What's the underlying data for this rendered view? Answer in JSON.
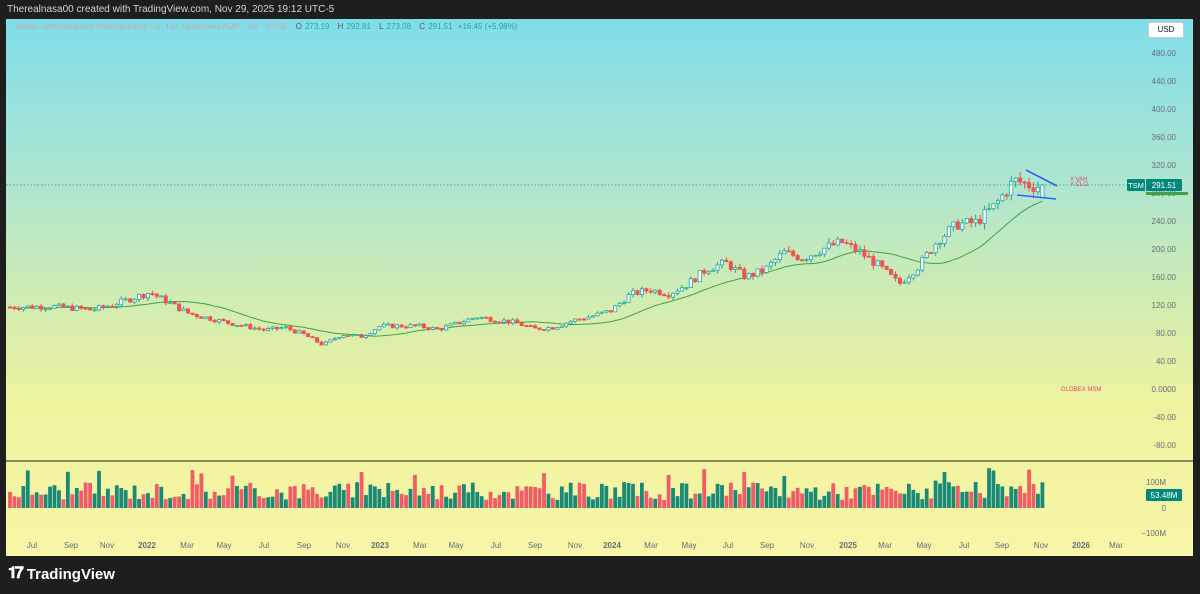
{
  "header": {
    "text": "Therealnasa00 created with TradingView.com, Nov 29, 2025 19:12 UTC-5"
  },
  "legend": {
    "name": "Taiwan Semiconductor Manufacturing Co., Ltd. Sponsored ADR · 1W · NYSE",
    "o_label": "O",
    "o": "273.19",
    "h_label": "H",
    "h": "292.81",
    "l_label": "L",
    "l": "273.08",
    "c_label": "C",
    "c": "291.51",
    "change": "+16.45 (+5.98%)"
  },
  "currency_button": "USD",
  "price_tag": {
    "symbol": "TSM",
    "value": "291.51"
  },
  "volume_tag": {
    "value": "53.48M"
  },
  "annotations": {
    "level_1": "Y VAH",
    "level_2": "Y CLO",
    "globex": "GLOBEX MSM"
  },
  "brand": {
    "name": "TradingView",
    "mark": "𝟏𝟕"
  },
  "colors": {
    "up": "#26a69a",
    "down": "#ef5350",
    "vol_up": "#1a8a77",
    "vol_down": "#f05d66",
    "ma": "#43a047",
    "pattern": "#2962ff",
    "tag": "#00897b"
  },
  "chart_data": [
    {
      "type": "candlestick",
      "title": "",
      "ylim": [
        -100,
        500
      ],
      "y_ticks": [
        "480.00",
        "440.00",
        "400.00",
        "360.00",
        "320.00",
        "280.00",
        "240.00",
        "200.00",
        "160.00",
        "120.00",
        "80.00",
        "40.00",
        "0.0000",
        "-40.00",
        "-80.00"
      ],
      "x_ticks": [
        "Jul",
        "Sep",
        "Nov",
        "2022",
        "Mar",
        "May",
        "Jul",
        "Sep",
        "Nov",
        "2023",
        "Mar",
        "May",
        "Jul",
        "Sep",
        "Nov",
        "2024",
        "Mar",
        "May",
        "Jul",
        "Sep",
        "Nov",
        "2025",
        "Mar",
        "May",
        "Jul",
        "Sep",
        "Nov",
        "2026",
        "Mar"
      ],
      "x_tick_bold": [
        "2022",
        "2023",
        "2024",
        "2025",
        "2026"
      ],
      "price_path": [
        [
          "2021-06",
          117
        ],
        [
          "2021-08",
          118
        ],
        [
          "2021-10",
          113
        ],
        [
          "2021-11",
          120
        ],
        [
          "2022-01",
          138
        ],
        [
          "2022-02",
          123
        ],
        [
          "2022-03",
          108
        ],
        [
          "2022-05",
          95
        ],
        [
          "2022-07",
          84
        ],
        [
          "2022-08",
          88
        ],
        [
          "2022-09",
          78
        ],
        [
          "2022-10",
          63
        ],
        [
          "2022-11",
          78
        ],
        [
          "2022-12",
          75
        ],
        [
          "2023-01",
          90
        ],
        [
          "2023-03",
          90
        ],
        [
          "2023-04",
          85
        ],
        [
          "2023-06",
          103
        ],
        [
          "2023-08",
          95
        ],
        [
          "2023-09",
          86
        ],
        [
          "2023-10",
          88
        ],
        [
          "2023-11",
          98
        ],
        [
          "2023-12",
          104
        ],
        [
          "2024-01",
          112
        ],
        [
          "2024-02",
          135
        ],
        [
          "2024-03",
          142
        ],
        [
          "2024-04",
          136
        ],
        [
          "2024-05",
          150
        ],
        [
          "2024-06",
          172
        ],
        [
          "2024-07",
          180
        ],
        [
          "2024-08",
          160
        ],
        [
          "2024-09",
          170
        ],
        [
          "2024-10",
          195
        ],
        [
          "2024-11",
          187
        ],
        [
          "2024-12",
          200
        ],
        [
          "2025-01",
          210
        ],
        [
          "2025-02",
          195
        ],
        [
          "2025-03",
          175
        ],
        [
          "2025-04",
          150
        ],
        [
          "2025-05",
          175
        ],
        [
          "2025-06",
          212
        ],
        [
          "2025-07",
          235
        ],
        [
          "2025-08",
          238
        ],
        [
          "2025-09",
          262
        ],
        [
          "2025-10",
          298
        ],
        [
          "2025-11",
          290
        ]
      ],
      "last_close": 291.51,
      "moving_average": "20-week",
      "pattern": "descending triangle (blue trendlines)"
    },
    {
      "type": "bar",
      "title": "Volume",
      "y_ticks": [
        "100M",
        "0",
        "−100M"
      ],
      "last_value": "53.48M"
    }
  ]
}
